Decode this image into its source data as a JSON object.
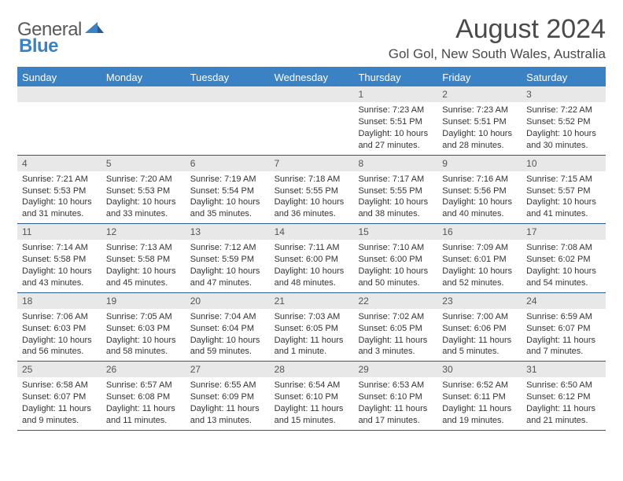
{
  "logo": {
    "textA": "General",
    "textB": "Blue"
  },
  "title": "August 2024",
  "location": "Gol Gol, New South Wales, Australia",
  "colors": {
    "header_bg": "#3b82c4",
    "border": "#2a5a8a",
    "daynum_bg": "#e8e8e8",
    "text": "#333333",
    "logo_gray": "#5a5a5a",
    "logo_blue": "#3b82c4"
  },
  "dayNames": [
    "Sunday",
    "Monday",
    "Tuesday",
    "Wednesday",
    "Thursday",
    "Friday",
    "Saturday"
  ],
  "weeks": [
    [
      null,
      null,
      null,
      null,
      {
        "n": "1",
        "sr": "7:23 AM",
        "ss": "5:51 PM",
        "dl": "10 hours and 27 minutes."
      },
      {
        "n": "2",
        "sr": "7:23 AM",
        "ss": "5:51 PM",
        "dl": "10 hours and 28 minutes."
      },
      {
        "n": "3",
        "sr": "7:22 AM",
        "ss": "5:52 PM",
        "dl": "10 hours and 30 minutes."
      }
    ],
    [
      {
        "n": "4",
        "sr": "7:21 AM",
        "ss": "5:53 PM",
        "dl": "10 hours and 31 minutes."
      },
      {
        "n": "5",
        "sr": "7:20 AM",
        "ss": "5:53 PM",
        "dl": "10 hours and 33 minutes."
      },
      {
        "n": "6",
        "sr": "7:19 AM",
        "ss": "5:54 PM",
        "dl": "10 hours and 35 minutes."
      },
      {
        "n": "7",
        "sr": "7:18 AM",
        "ss": "5:55 PM",
        "dl": "10 hours and 36 minutes."
      },
      {
        "n": "8",
        "sr": "7:17 AM",
        "ss": "5:55 PM",
        "dl": "10 hours and 38 minutes."
      },
      {
        "n": "9",
        "sr": "7:16 AM",
        "ss": "5:56 PM",
        "dl": "10 hours and 40 minutes."
      },
      {
        "n": "10",
        "sr": "7:15 AM",
        "ss": "5:57 PM",
        "dl": "10 hours and 41 minutes."
      }
    ],
    [
      {
        "n": "11",
        "sr": "7:14 AM",
        "ss": "5:58 PM",
        "dl": "10 hours and 43 minutes."
      },
      {
        "n": "12",
        "sr": "7:13 AM",
        "ss": "5:58 PM",
        "dl": "10 hours and 45 minutes."
      },
      {
        "n": "13",
        "sr": "7:12 AM",
        "ss": "5:59 PM",
        "dl": "10 hours and 47 minutes."
      },
      {
        "n": "14",
        "sr": "7:11 AM",
        "ss": "6:00 PM",
        "dl": "10 hours and 48 minutes."
      },
      {
        "n": "15",
        "sr": "7:10 AM",
        "ss": "6:00 PM",
        "dl": "10 hours and 50 minutes."
      },
      {
        "n": "16",
        "sr": "7:09 AM",
        "ss": "6:01 PM",
        "dl": "10 hours and 52 minutes."
      },
      {
        "n": "17",
        "sr": "7:08 AM",
        "ss": "6:02 PM",
        "dl": "10 hours and 54 minutes."
      }
    ],
    [
      {
        "n": "18",
        "sr": "7:06 AM",
        "ss": "6:03 PM",
        "dl": "10 hours and 56 minutes."
      },
      {
        "n": "19",
        "sr": "7:05 AM",
        "ss": "6:03 PM",
        "dl": "10 hours and 58 minutes."
      },
      {
        "n": "20",
        "sr": "7:04 AM",
        "ss": "6:04 PM",
        "dl": "10 hours and 59 minutes."
      },
      {
        "n": "21",
        "sr": "7:03 AM",
        "ss": "6:05 PM",
        "dl": "11 hours and 1 minute."
      },
      {
        "n": "22",
        "sr": "7:02 AM",
        "ss": "6:05 PM",
        "dl": "11 hours and 3 minutes."
      },
      {
        "n": "23",
        "sr": "7:00 AM",
        "ss": "6:06 PM",
        "dl": "11 hours and 5 minutes."
      },
      {
        "n": "24",
        "sr": "6:59 AM",
        "ss": "6:07 PM",
        "dl": "11 hours and 7 minutes."
      }
    ],
    [
      {
        "n": "25",
        "sr": "6:58 AM",
        "ss": "6:07 PM",
        "dl": "11 hours and 9 minutes."
      },
      {
        "n": "26",
        "sr": "6:57 AM",
        "ss": "6:08 PM",
        "dl": "11 hours and 11 minutes."
      },
      {
        "n": "27",
        "sr": "6:55 AM",
        "ss": "6:09 PM",
        "dl": "11 hours and 13 minutes."
      },
      {
        "n": "28",
        "sr": "6:54 AM",
        "ss": "6:10 PM",
        "dl": "11 hours and 15 minutes."
      },
      {
        "n": "29",
        "sr": "6:53 AM",
        "ss": "6:10 PM",
        "dl": "11 hours and 17 minutes."
      },
      {
        "n": "30",
        "sr": "6:52 AM",
        "ss": "6:11 PM",
        "dl": "11 hours and 19 minutes."
      },
      {
        "n": "31",
        "sr": "6:50 AM",
        "ss": "6:12 PM",
        "dl": "11 hours and 21 minutes."
      }
    ]
  ],
  "labels": {
    "sunrise": "Sunrise: ",
    "sunset": "Sunset: ",
    "daylight": "Daylight: "
  }
}
